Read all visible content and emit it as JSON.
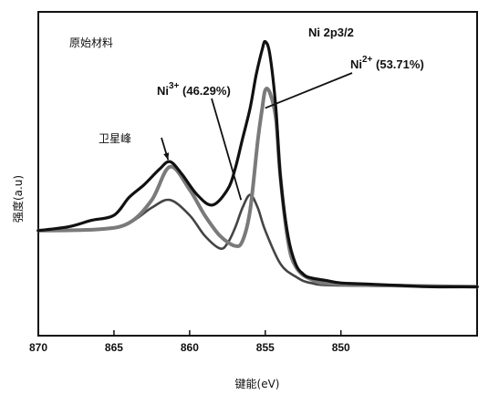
{
  "chart_data": {
    "type": "line",
    "title": "",
    "xlabel": "键能(eV)",
    "ylabel": "强度(a.u)",
    "x_reversed": true,
    "xlim": [
      870,
      841
    ],
    "ylim": [
      0,
      1
    ],
    "xticks": [
      870,
      865,
      860,
      855,
      850
    ],
    "y_ticks_labeled": false,
    "grid": false,
    "series": [
      {
        "color": "#111111",
        "x": [
          870,
          868,
          866.5,
          865,
          864,
          863,
          862,
          861.3,
          860.5,
          859.5,
          858.5,
          857.5,
          857,
          856.5,
          856,
          855.6,
          855.2,
          855,
          854.7,
          854.3,
          854,
          853.5,
          853,
          852.5,
          852,
          851,
          850,
          848,
          846,
          844,
          841
        ],
        "y": [
          0.24,
          0.255,
          0.28,
          0.3,
          0.37,
          0.42,
          0.48,
          0.51,
          0.46,
          0.38,
          0.34,
          0.4,
          0.48,
          0.6,
          0.72,
          0.85,
          0.95,
          0.98,
          0.93,
          0.72,
          0.45,
          0.22,
          0.11,
          0.07,
          0.055,
          0.045,
          0.035,
          0.03,
          0.025,
          0.02,
          0.02
        ]
      },
      {
        "color": "#444444",
        "x": [
          870,
          866,
          864,
          862.5,
          861.3,
          860,
          859,
          858,
          857.5,
          857,
          856.5,
          856,
          855.5,
          855,
          854,
          853,
          852,
          850,
          841
        ],
        "y": [
          0.24,
          0.245,
          0.27,
          0.33,
          0.36,
          0.3,
          0.22,
          0.17,
          0.19,
          0.25,
          0.33,
          0.38,
          0.33,
          0.24,
          0.11,
          0.06,
          0.035,
          0.025,
          0.02
        ]
      },
      {
        "color": "#7a7a7a",
        "x": [
          870,
          866,
          864,
          862.5,
          861.3,
          860,
          859,
          858,
          857,
          856.5,
          856,
          855.5,
          855.2,
          855,
          854.7,
          854.3,
          854,
          853.5,
          853,
          852,
          850,
          841
        ],
        "y": [
          0.24,
          0.245,
          0.27,
          0.36,
          0.49,
          0.4,
          0.3,
          0.22,
          0.18,
          0.2,
          0.32,
          0.59,
          0.72,
          0.79,
          0.78,
          0.68,
          0.45,
          0.2,
          0.1,
          0.05,
          0.03,
          0.02
        ]
      }
    ],
    "annotations": [
      {
        "text_main": "Ni 2p3/2"
      },
      {
        "text_main": "Ni",
        "sup": "2+",
        "text_after": " (53.71%)"
      },
      {
        "text_main": "Ni",
        "sup": "3+",
        "text_after": " (46.29%)"
      },
      {
        "text_main": "卫星峰"
      },
      {
        "text_main": "原始材料"
      }
    ]
  }
}
